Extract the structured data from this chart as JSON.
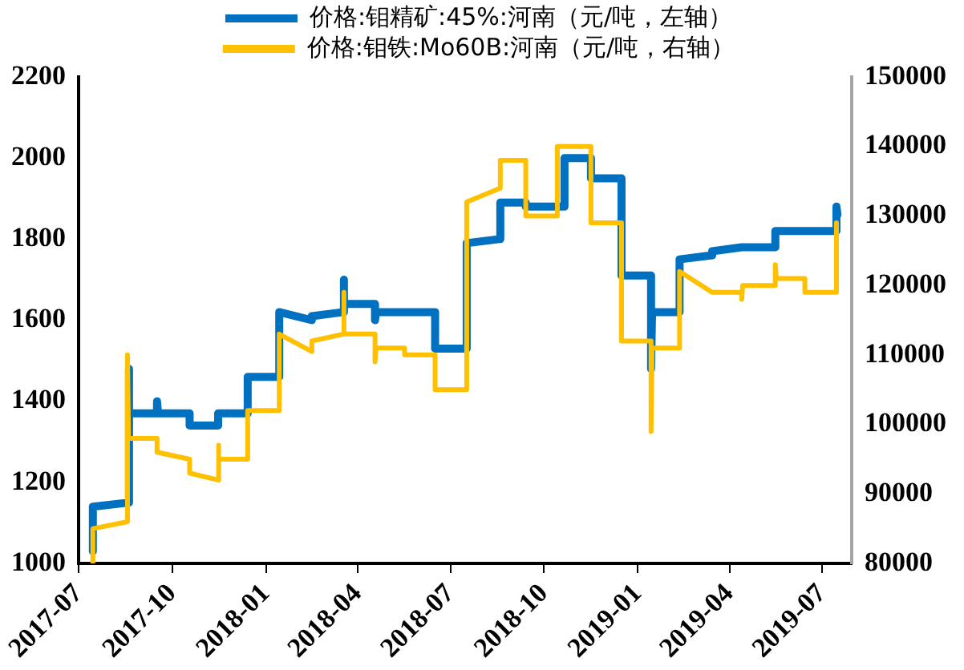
{
  "chart_data": {
    "type": "line",
    "legend": "top",
    "marker": "none",
    "line_style": "solid",
    "grid": false,
    "xlim": [
      "2017-07-01",
      "2019-07-30"
    ],
    "xticks": [
      "2017-07",
      "2017-10",
      "2018-01",
      "2018-04",
      "2018-07",
      "2018-10",
      "2019-01",
      "2019-04",
      "2019-07"
    ],
    "ylim": [
      1000,
      2200
    ],
    "yticks": [
      1000,
      1200,
      1400,
      1600,
      1800,
      2000,
      2200
    ],
    "y2lim": [
      80000,
      150000
    ],
    "y2ticks": [
      80000,
      90000,
      100000,
      110000,
      120000,
      130000,
      140000,
      150000
    ],
    "series": [
      {
        "name": "价格:钼精矿:45%:河南（元/吨，左轴）",
        "color": "#0070c0",
        "x": [
          "2017-07-15",
          "2017-07-15",
          "2017-08-19",
          "2017-08-19",
          "2017-08-20",
          "2017-09-16",
          "2017-09-16",
          "2017-09-17",
          "2017-10-18",
          "2017-10-18",
          "2017-11-15",
          "2017-11-15",
          "2017-12-14",
          "2017-12-14",
          "2018-01-14",
          "2018-01-14",
          "2018-02-15",
          "2018-02-15",
          "2018-03-18",
          "2018-03-18",
          "2018-03-19",
          "2018-04-18",
          "2018-04-18",
          "2018-04-19",
          "2018-06-16",
          "2018-06-16",
          "2018-07-17",
          "2018-07-17",
          "2018-08-18",
          "2018-08-19",
          "2018-09-13",
          "2018-09-13",
          "2018-10-21",
          "2018-10-21",
          "2018-11-16",
          "2018-11-16",
          "2018-12-16",
          "2018-12-16",
          "2019-01-14",
          "2019-01-14",
          "2019-01-15",
          "2019-02-11",
          "2019-02-11",
          "2019-03-15",
          "2019-03-15",
          "2019-04-13",
          "2019-05-16",
          "2019-05-16",
          "2019-07-15",
          "2019-07-15",
          "2019-07-16"
        ],
        "values": [
          1030,
          1140,
          1150,
          1480,
          1370,
          1370,
          1400,
          1370,
          1370,
          1340,
          1340,
          1370,
          1370,
          1460,
          1460,
          1620,
          1600,
          1610,
          1620,
          1700,
          1640,
          1640,
          1600,
          1620,
          1620,
          1530,
          1530,
          1790,
          1800,
          1890,
          1890,
          1880,
          1880,
          2000,
          2000,
          1950,
          1950,
          1710,
          1710,
          1480,
          1620,
          1620,
          1750,
          1760,
          1770,
          1780,
          1780,
          1820,
          1820,
          1880,
          1860
        ]
      },
      {
        "name": "价格:钼铁:Mo60B:河南（元/吨，右轴）",
        "color": "#ffc000",
        "axis": "y2",
        "x": [
          "2017-07-15",
          "2017-07-15",
          "2017-08-18",
          "2017-08-18",
          "2017-08-19",
          "2017-09-16",
          "2017-09-16",
          "2017-10-18",
          "2017-10-18",
          "2017-11-15",
          "2017-11-15",
          "2017-11-16",
          "2017-12-14",
          "2017-12-14",
          "2018-01-14",
          "2018-01-14",
          "2018-02-15",
          "2018-02-15",
          "2018-03-18",
          "2018-03-18",
          "2018-03-19",
          "2018-04-18",
          "2018-04-18",
          "2018-04-19",
          "2018-05-17",
          "2018-05-17",
          "2018-06-16",
          "2018-06-16",
          "2018-07-17",
          "2018-07-17",
          "2018-08-19",
          "2018-08-19",
          "2018-09-13",
          "2018-09-13",
          "2018-10-14",
          "2018-10-14",
          "2018-11-16",
          "2018-11-16",
          "2018-12-16",
          "2018-12-16",
          "2019-01-14",
          "2019-01-14",
          "2019-01-15",
          "2019-02-11",
          "2019-02-11",
          "2019-03-15",
          "2019-04-13",
          "2019-04-13",
          "2019-04-14",
          "2019-05-16",
          "2019-05-16",
          "2019-05-17",
          "2019-06-14",
          "2019-06-14",
          "2019-07-15",
          "2019-07-15"
        ],
        "values": [
          80000,
          85000,
          86000,
          110000,
          98000,
          98000,
          96000,
          95000,
          93000,
          92000,
          97000,
          95000,
          95000,
          102000,
          102000,
          113000,
          110500,
          112000,
          113000,
          119000,
          113000,
          113000,
          109000,
          111000,
          111000,
          110000,
          110000,
          105000,
          105000,
          132000,
          134000,
          138000,
          138000,
          130000,
          130000,
          140000,
          140000,
          129000,
          129000,
          112000,
          112000,
          99000,
          111000,
          111000,
          122000,
          119000,
          119000,
          118000,
          120000,
          120000,
          123000,
          121000,
          121000,
          119000,
          119000,
          129000
        ]
      }
    ]
  }
}
